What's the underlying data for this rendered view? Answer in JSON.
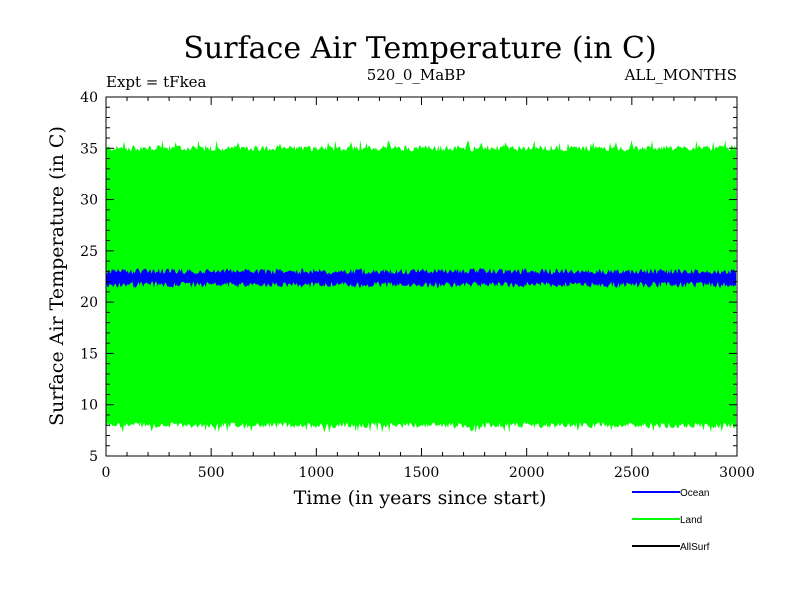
{
  "chart_data": {
    "type": "line",
    "title": "Surface Air Temperature (in C)",
    "header_left": "Expt = tFkea",
    "header_center": "520_0_MaBP",
    "header_right": "ALL_MONTHS",
    "xlabel": "Time (in years since start)",
    "ylabel": "Surface Air Temperature (in C)",
    "xlim": [
      0,
      3000
    ],
    "ylim": [
      5,
      40
    ],
    "xticks": [
      0,
      500,
      1000,
      1500,
      2000,
      2500,
      3000
    ],
    "yticks": [
      5,
      10,
      15,
      20,
      25,
      30,
      35,
      40
    ],
    "grid": false,
    "legend_position": "bottom-right, below plot",
    "series": [
      {
        "name": "Land",
        "color": "#00ff00",
        "band_low": 8,
        "band_high": 35,
        "band_low_extreme": 7.2,
        "band_high_extreme": 35.8
      },
      {
        "name": "Ocean",
        "color": "#0000ff",
        "band_low": 21.7,
        "band_high": 23,
        "band_low_extreme": 21.5,
        "band_high_extreme": 23.2
      },
      {
        "name": "AllSurf",
        "color": "#000000"
      }
    ]
  }
}
